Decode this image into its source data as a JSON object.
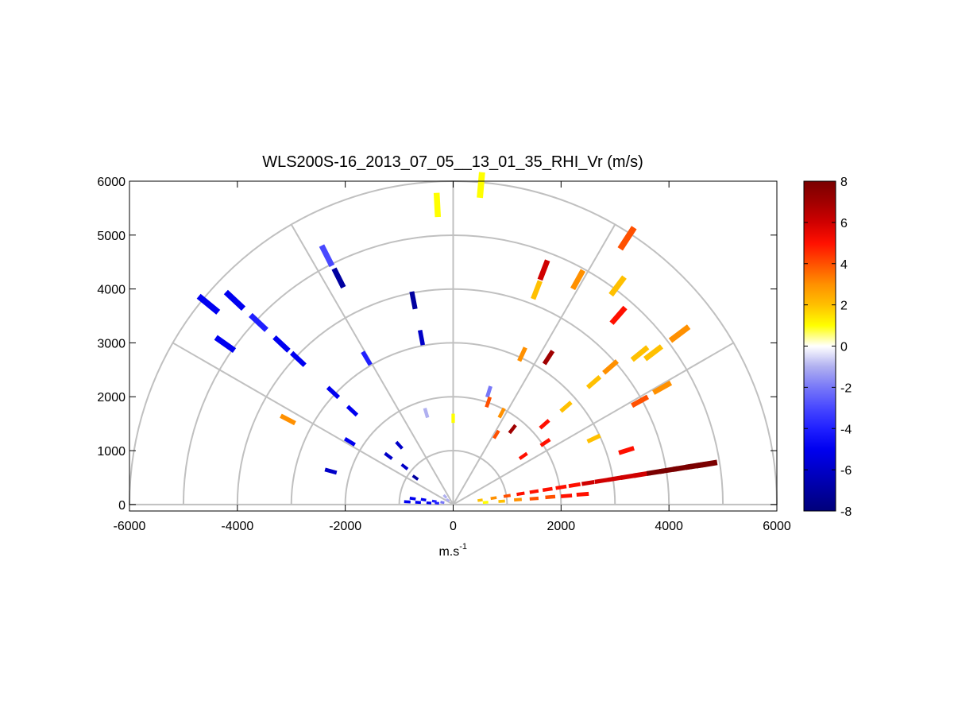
{
  "chart_data": {
    "type": "polar-rhi",
    "title": "WLS200S-16_2013_07_05__13_01_35_RHI_Vr (m/s)",
    "xlabel": "m.s",
    "xlabel_sup": "-1",
    "xlim": [
      -6000,
      6000
    ],
    "ylim": [
      -120,
      6000
    ],
    "xticks": [
      -6000,
      -4000,
      -2000,
      0,
      2000,
      4000,
      6000
    ],
    "yticks": [
      0,
      1000,
      2000,
      3000,
      4000,
      5000,
      6000
    ],
    "rings": [
      1000,
      2000,
      3000,
      4000,
      5000,
      6000
    ],
    "spokes": [
      0,
      30,
      60,
      90,
      120,
      150,
      180
    ],
    "clim": [
      -8,
      8
    ],
    "cticks": [
      -8,
      -6,
      -4,
      -2,
      0,
      2,
      4,
      6,
      8
    ],
    "colormap": [
      "#00007a",
      "#0000a0",
      "#0000c8",
      "#0000f0",
      "#2020ff",
      "#4848ff",
      "#7878f8",
      "#b0b0f0",
      "#ffffff",
      "#ffff00",
      "#ffc000",
      "#ff9000",
      "#ff5000",
      "#ff1000",
      "#d00000",
      "#a00000",
      "#7a0000"
    ],
    "gates": {
      "x": [
        -4536,
        -4050,
        -4227,
        -3608,
        -3181,
        -2872,
        -2342,
        -2121,
        -736,
        -589,
        -1605,
        -2224,
        -1870,
        -1915,
        -2268,
        -3063,
        -295,
        515,
        3225,
        1679,
        2312,
        1546,
        3049,
        3063,
        4197,
        3461,
        3711,
        1281,
        1767,
        2916,
        2607,
        2091,
        3461,
        3873,
        2607,
        1694,
        3211,
        1708,
        500,
        750,
        1000,
        1250,
        1500,
        1750,
        2000,
        2250,
        2500,
        2750,
        3000,
        3250,
        3500,
        3750,
        4000,
        4250,
        4500,
        4700,
        600,
        900,
        1200,
        1500,
        1800,
        2100,
        2400,
        -850,
        -650,
        -450,
        -300,
        -750,
        -550,
        -350,
        -200,
        -150,
        -100,
        -1200,
        -900,
        -700,
        -1000,
        -500,
        662,
        0,
        900,
        1100,
        800,
        650,
        1300
      ],
      "y": [
        3717,
        3790,
        2979,
        3378,
        2979,
        2699,
        4617,
        4204,
        3790,
        3097,
        2714,
        2080,
        1740,
        1165,
        619,
        1578,
        5560,
        5929,
        4941,
        4351,
        4174,
        3982,
        4056,
        3510,
        3171,
        2802,
        2817,
        2788,
        2729,
        2552,
        2271,
        1814,
        1917,
        2168,
        1224,
        1490,
        1003,
        1150,
        80,
        120,
        160,
        200,
        240,
        280,
        320,
        360,
        400,
        440,
        480,
        520,
        560,
        600,
        640,
        680,
        720,
        750,
        40,
        60,
        90,
        110,
        140,
        160,
        190,
        50,
        40,
        30,
        25,
        110,
        90,
        60,
        40,
        150,
        80,
        900,
        700,
        500,
        1100,
        1700,
        2094,
        1600,
        1700,
        1400,
        1300,
        1900,
        900
      ],
      "values": [
        -5,
        -5,
        -5,
        -4,
        -5,
        -5,
        -3.5,
        -7.5,
        -7,
        -6,
        -4,
        -5,
        -5,
        -5,
        -6,
        2.5,
        1,
        1,
        4,
        6,
        3,
        1.5,
        2,
        5,
        2.5,
        2,
        2,
        3,
        7,
        3,
        1.5,
        1.5,
        4,
        2.5,
        1.5,
        5,
        5,
        5,
        1.5,
        3,
        4,
        4.5,
        4.5,
        5,
        5,
        5,
        5.5,
        5.5,
        5.5,
        6,
        6,
        7.5,
        7.5,
        7.5,
        7.5,
        7.5,
        1,
        2,
        3,
        4,
        4,
        4.5,
        5,
        -5,
        -5,
        -5,
        -4,
        -5,
        -5,
        -4,
        -2,
        -1,
        -1,
        -6,
        -6,
        -7,
        -6,
        -1.5,
        -2,
        1,
        3,
        7,
        4,
        4,
        5
      ]
    }
  }
}
